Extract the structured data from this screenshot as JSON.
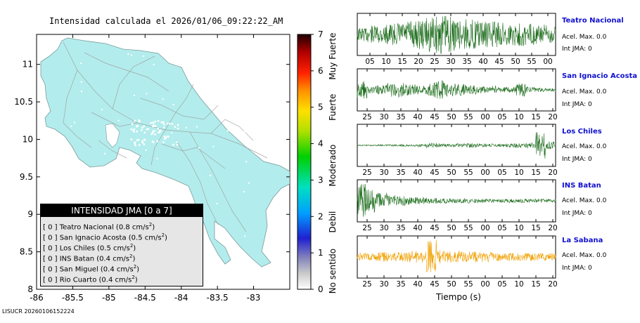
{
  "map": {
    "title": "Intensidad calculada el 2026/01/06_09:22:22_AM",
    "footer_id": "LISUCR 20260106152224",
    "x_ticks": [
      "-86",
      "-85.5",
      "-85",
      "-84.5",
      "-84",
      "-83.5",
      "-83"
    ],
    "y_ticks": [
      "11",
      "10.5",
      "10",
      "9.5",
      "9",
      "8.5",
      "8"
    ],
    "land_color": "#b3ecec",
    "road_color": "#9a9a9a"
  },
  "colorbar": {
    "ticks": [
      "0",
      "1",
      "2",
      "3",
      "4",
      "5",
      "6",
      "7"
    ],
    "labels": [
      "No sentido",
      "Debil",
      "Moderado",
      "Fuerte",
      "Muy Fuerte"
    ]
  },
  "legend": {
    "header": "INTENSIDAD JMA [0 a 7]",
    "rows": [
      {
        "prefix": "[ 0 ] Teatro Nacional (0.8 cm/s",
        "sup": "2",
        "suffix": ")"
      },
      {
        "prefix": "[ 0 ] San Ignacio Acosta (0.5 cm/s",
        "sup": "2",
        "suffix": ")"
      },
      {
        "prefix": "[ 0 ] Los Chiles (0.5 cm/s",
        "sup": "2",
        "suffix": ")"
      },
      {
        "prefix": "[ 0 ] INS Batan (0.4 cm/s",
        "sup": "2",
        "suffix": ")"
      },
      {
        "prefix": "[ 0 ] San Miguel (0.4 cm/s",
        "sup": "2",
        "suffix": ")"
      },
      {
        "prefix": "[ 0 ] Rio Cuarto (0.4 cm/s",
        "sup": "2",
        "suffix": ")"
      }
    ]
  },
  "stations": [
    {
      "name": "Teatro Nacional",
      "acel": "Acel. Max. 0.0",
      "int": "Int JMA: 0",
      "color": "#1a6b1a",
      "ticks": [
        "05",
        "10",
        "15",
        "20",
        "25",
        "30",
        "35",
        "40",
        "45",
        "50",
        "55",
        "00"
      ]
    },
    {
      "name": "San Ignacio Acosta",
      "acel": "Acel. Max. 0.0",
      "int": "Int JMA: 0",
      "color": "#1a6b1a",
      "ticks": [
        "25",
        "30",
        "35",
        "40",
        "45",
        "50",
        "55",
        "00",
        "05",
        "10",
        "15",
        "20"
      ]
    },
    {
      "name": "Los Chiles",
      "acel": "Acel. Max. 0.0",
      "int": "Int JMA: 0",
      "color": "#1a6b1a",
      "ticks": [
        "25",
        "30",
        "35",
        "40",
        "45",
        "50",
        "55",
        "00",
        "05",
        "10",
        "15",
        "20"
      ]
    },
    {
      "name": "INS Batan",
      "acel": "Acel. Max. 0.0",
      "int": "Int JMA: 0",
      "color": "#1a6b1a",
      "ticks": [
        "25",
        "30",
        "35",
        "40",
        "45",
        "50",
        "55",
        "00",
        "05",
        "10",
        "15",
        "20"
      ]
    },
    {
      "name": "La Sabana",
      "acel": "Acel. Max. 0.0",
      "int": "Int JMA: 0",
      "color": "#f0a000",
      "ticks": [
        "25",
        "30",
        "35",
        "40",
        "45",
        "50",
        "55",
        "00",
        "05",
        "10",
        "15",
        "20"
      ]
    }
  ],
  "xlabel": "Tiempo (s)",
  "chart_data": [
    {
      "type": "map",
      "title": "Intensidad calculada el 2026/01/06_09:22:22_AM",
      "xlim": [
        -86,
        -82.5
      ],
      "ylim": [
        8,
        11.4
      ],
      "x_ticks": [
        -86,
        -85.5,
        -85,
        -84.5,
        -84,
        -83.5,
        -83
      ],
      "y_ticks": [
        8,
        8.5,
        9,
        9.5,
        10,
        10.5,
        11
      ],
      "colorbar": {
        "min": 0,
        "max": 7,
        "labels": [
          "No sentido",
          "Debil",
          "Moderado",
          "Fuerte",
          "Muy Fuerte"
        ]
      }
    },
    {
      "type": "line",
      "xlabel": "Tiempo (s)",
      "series": [
        {
          "name": "Teatro Nacional",
          "acel_max": 0.0,
          "int_jma": 0,
          "envelope": [
            0.35,
            0.45,
            0.5,
            0.55,
            0.6,
            0.7,
            0.75,
            0.9,
            1.0,
            0.9,
            0.8,
            0.75,
            0.7,
            0.7,
            0.65,
            0.6,
            0.6,
            0.55,
            0.5,
            0.5
          ]
        },
        {
          "name": "San Ignacio Acosta",
          "acel_max": 0.0,
          "int_jma": 0,
          "envelope": [
            0.45,
            0.2,
            0.25,
            0.35,
            0.4,
            0.3,
            0.25,
            0.4,
            0.5,
            0.35,
            0.3,
            0.25,
            0.2,
            0.2,
            0.15,
            0.15,
            0.35,
            0.15,
            0.1,
            0.08
          ]
        },
        {
          "name": "Los Chiles",
          "acel_max": 0.0,
          "int_jma": 0,
          "envelope": [
            0.03,
            0.03,
            0.04,
            0.05,
            0.06,
            0.05,
            0.08,
            0.12,
            0.1,
            0.08,
            0.1,
            0.12,
            0.1,
            0.08,
            0.08,
            0.1,
            0.12,
            0.15,
            0.7,
            0.2
          ]
        },
        {
          "name": "INS Batan",
          "acel_max": 0.0,
          "int_jma": 0,
          "envelope": [
            0.9,
            0.6,
            0.45,
            0.3,
            0.25,
            0.2,
            0.18,
            0.15,
            0.14,
            0.14,
            0.12,
            0.12,
            0.1,
            0.1,
            0.1,
            0.1,
            0.1,
            0.1,
            0.1,
            0.1
          ]
        },
        {
          "name": "La Sabana",
          "acel_max": 0.0,
          "int_jma": 0,
          "envelope": [
            0.2,
            0.2,
            0.25,
            0.25,
            0.25,
            0.3,
            0.3,
            0.9,
            0.35,
            0.3,
            0.3,
            0.28,
            0.25,
            0.25,
            0.22,
            0.2,
            0.2,
            0.2,
            0.2,
            0.2
          ]
        }
      ]
    }
  ]
}
